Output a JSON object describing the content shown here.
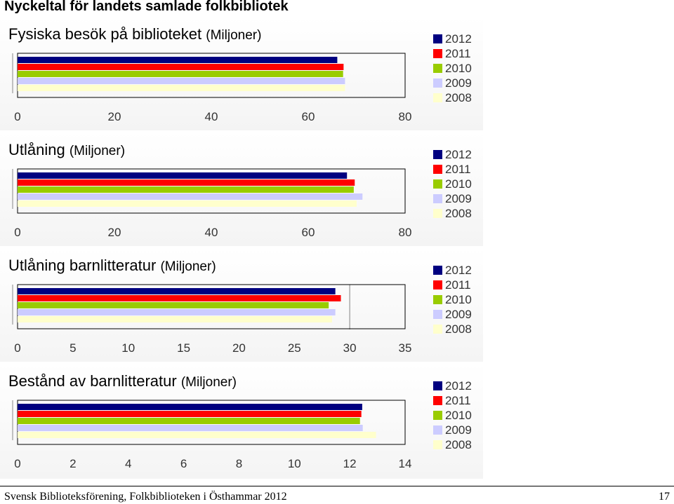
{
  "page_title": "Nyckeltal för landets samlade folkbibliotek",
  "footer": {
    "source": "Svensk Biblioteksförening, Folkbiblioteken i Östhammar 2012",
    "page_number": "17"
  },
  "colors": {
    "2012": "#000080",
    "2011": "#ff0000",
    "2010": "#99cc00",
    "2009": "#ccccff",
    "2008": "#ffffcc"
  },
  "chart_data": [
    {
      "type": "bar",
      "orientation": "horizontal",
      "title": "Fysiska besök på biblioteket",
      "unit": "(Miljoner)",
      "xlim": [
        0,
        80
      ],
      "ticks": [
        "0",
        "20",
        "40",
        "60",
        "80"
      ],
      "series": [
        {
          "name": "2012",
          "value": 66
        },
        {
          "name": "2011",
          "value": 67.3
        },
        {
          "name": "2010",
          "value": 67.2
        },
        {
          "name": "2009",
          "value": 67.6
        },
        {
          "name": "2008",
          "value": 67.6
        }
      ],
      "legend": [
        "2012",
        "2011",
        "2010",
        "2009",
        "2008"
      ],
      "legend_position": "right"
    },
    {
      "type": "bar",
      "orientation": "horizontal",
      "title": "Utlåning",
      "unit": "(Miljoner)",
      "xlim": [
        0,
        80
      ],
      "ticks": [
        "0",
        "20",
        "40",
        "60",
        "80"
      ],
      "series": [
        {
          "name": "2012",
          "value": 68
        },
        {
          "name": "2011",
          "value": 69.6
        },
        {
          "name": "2010",
          "value": 69.4
        },
        {
          "name": "2009",
          "value": 71.2
        },
        {
          "name": "2008",
          "value": 70
        }
      ],
      "legend": [
        "2012",
        "2011",
        "2010",
        "2009",
        "2008"
      ],
      "legend_position": "right"
    },
    {
      "type": "bar",
      "orientation": "horizontal",
      "title": "Utlåning barnlitteratur",
      "unit": "(Miljoner)",
      "xlim": [
        0,
        35
      ],
      "ticks": [
        "0",
        "5",
        "10",
        "15",
        "20",
        "25",
        "30",
        "35"
      ],
      "series": [
        {
          "name": "2012",
          "value": 28.7
        },
        {
          "name": "2011",
          "value": 29.2
        },
        {
          "name": "2010",
          "value": 28.1
        },
        {
          "name": "2009",
          "value": 28.7
        },
        {
          "name": "2008",
          "value": 28.4
        }
      ],
      "legend": [
        "2012",
        "2011",
        "2010",
        "2009",
        "2008"
      ],
      "legend_position": "right"
    },
    {
      "type": "bar",
      "orientation": "horizontal",
      "title": "Bestånd av barnlitteratur",
      "unit": "(Miljoner)",
      "xlim": [
        0,
        14
      ],
      "ticks": [
        "0",
        "2",
        "4",
        "6",
        "8",
        "10",
        "12",
        "14"
      ],
      "series": [
        {
          "name": "2012",
          "value": 12.45
        },
        {
          "name": "2011",
          "value": 12.42
        },
        {
          "name": "2010",
          "value": 12.37
        },
        {
          "name": "2009",
          "value": 12.47
        },
        {
          "name": "2008",
          "value": 12.95
        }
      ],
      "legend": [
        "2012",
        "2011",
        "2010",
        "2009",
        "2008"
      ],
      "legend_position": "right"
    }
  ]
}
